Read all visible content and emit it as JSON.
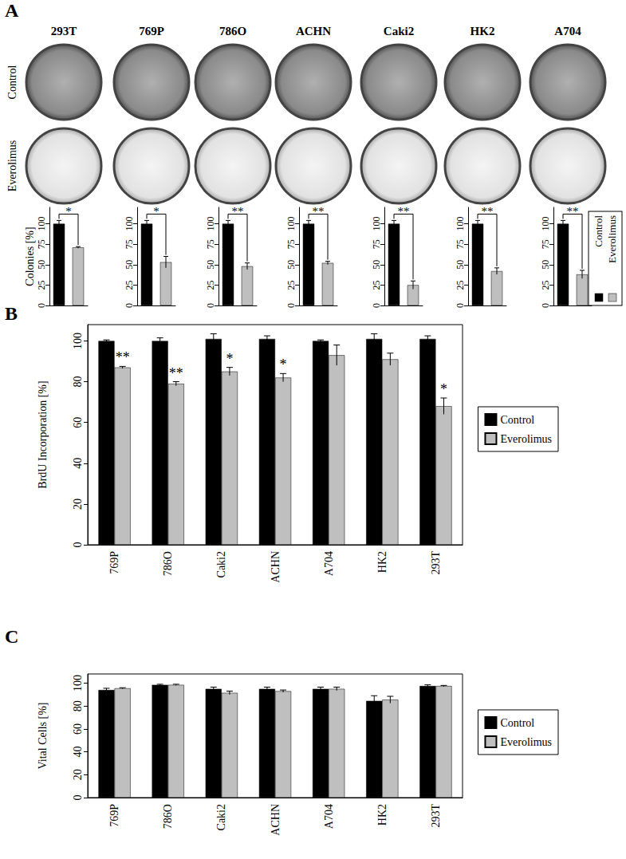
{
  "panel_labels": [
    "A",
    "B",
    "C"
  ],
  "panel_a": {
    "rows": [
      "Control",
      "Everolimus"
    ]
  },
  "chart_data": [
    {
      "type": "bar",
      "title": "293T",
      "categories": [
        null,
        null
      ],
      "ylabel": "Colonies [%]",
      "ylim": [
        0,
        120
      ],
      "yticks": [
        0,
        25,
        50,
        75,
        100
      ],
      "tick_labels": "y",
      "annotation": "*",
      "series": [
        {
          "name": "Control",
          "color": "#000000",
          "values": [
            100,
            null
          ],
          "errors": [
            4,
            null
          ]
        },
        {
          "name": "Everolimus",
          "color": "#bfbfbf",
          "values": [
            null,
            71
          ],
          "errors": [
            null,
            1
          ]
        }
      ]
    },
    {
      "type": "bar",
      "title": "769P",
      "categories": [
        null,
        null
      ],
      "ylim": [
        0,
        120
      ],
      "yticks": [
        0,
        25,
        50,
        75,
        100
      ],
      "tick_labels": "y",
      "annotation": "*",
      "series": [
        {
          "name": "Control",
          "color": "#000000",
          "values": [
            100,
            null
          ],
          "errors": [
            4,
            null
          ]
        },
        {
          "name": "Everolimus",
          "color": "#bfbfbf",
          "values": [
            null,
            53
          ],
          "errors": [
            null,
            7
          ]
        }
      ]
    },
    {
      "type": "bar",
      "title": "786O",
      "categories": [
        null,
        null
      ],
      "ylim": [
        0,
        120
      ],
      "yticks": [
        0,
        25,
        50,
        75,
        100
      ],
      "tick_labels": "y",
      "annotation": "**",
      "series": [
        {
          "name": "Control",
          "color": "#000000",
          "values": [
            100,
            null
          ],
          "errors": [
            4,
            null
          ]
        },
        {
          "name": "Everolimus",
          "color": "#bfbfbf",
          "values": [
            null,
            48
          ],
          "errors": [
            null,
            4
          ]
        }
      ]
    },
    {
      "type": "bar",
      "title": "ACHN",
      "categories": [
        null,
        null
      ],
      "ylim": [
        0,
        120
      ],
      "yticks": [
        0,
        25,
        50,
        75,
        100
      ],
      "tick_labels": "y",
      "annotation": "**",
      "series": [
        {
          "name": "Control",
          "color": "#000000",
          "values": [
            100,
            null
          ],
          "errors": [
            4,
            null
          ]
        },
        {
          "name": "Everolimus",
          "color": "#bfbfbf",
          "values": [
            null,
            52
          ],
          "errors": [
            null,
            2
          ]
        }
      ]
    },
    {
      "type": "bar",
      "title": "Caki2",
      "categories": [
        null,
        null
      ],
      "ylim": [
        0,
        120
      ],
      "yticks": [
        0,
        25,
        50,
        75,
        100
      ],
      "tick_labels": "y",
      "annotation": "**",
      "series": [
        {
          "name": "Control",
          "color": "#000000",
          "values": [
            100,
            null
          ],
          "errors": [
            4,
            null
          ]
        },
        {
          "name": "Everolimus",
          "color": "#bfbfbf",
          "values": [
            null,
            25
          ],
          "errors": [
            null,
            5
          ]
        }
      ]
    },
    {
      "type": "bar",
      "title": "HK2",
      "categories": [
        null,
        null
      ],
      "ylim": [
        0,
        120
      ],
      "yticks": [
        0,
        25,
        50,
        75,
        100
      ],
      "tick_labels": "y",
      "annotation": "**",
      "series": [
        {
          "name": "Control",
          "color": "#000000",
          "values": [
            100,
            null
          ],
          "errors": [
            4,
            null
          ]
        },
        {
          "name": "Everolimus",
          "color": "#bfbfbf",
          "values": [
            null,
            42
          ],
          "errors": [
            null,
            4
          ]
        }
      ]
    },
    {
      "type": "bar",
      "title": "A704",
      "categories": [
        null,
        null
      ],
      "ylim": [
        0,
        120
      ],
      "yticks": [
        0,
        25,
        50,
        75,
        100
      ],
      "tick_labels": "y",
      "annotation": "**",
      "legend": "right",
      "series": [
        {
          "name": "Control",
          "color": "#000000",
          "values": [
            100,
            null
          ],
          "errors": [
            4,
            null
          ]
        },
        {
          "name": "Everolimus",
          "color": "#bfbfbf",
          "values": [
            null,
            38
          ],
          "errors": [
            null,
            5
          ]
        }
      ]
    },
    {
      "type": "bar",
      "categories": [
        "769P",
        "786O",
        "Caki2",
        "ACHN",
        "A704",
        "HK2",
        "293T"
      ],
      "ylabel": "BrdU Incorporation [%]",
      "ylim": [
        0,
        108
      ],
      "yticks": [
        0,
        20,
        40,
        60,
        80,
        100
      ],
      "legend": "right",
      "annotations": [
        "**",
        "**",
        "*",
        "*",
        null,
        null,
        "*"
      ],
      "series": [
        {
          "name": "Control",
          "color": "#000000",
          "values": [
            100,
            100,
            101,
            101,
            100,
            101,
            101
          ],
          "errors": [
            0.5,
            1.5,
            2.5,
            1.5,
            0.5,
            2.5,
            1.5
          ]
        },
        {
          "name": "Everolimus",
          "color": "#bfbfbf",
          "values": [
            87,
            79,
            85,
            82,
            93,
            91,
            68
          ],
          "errors": [
            0.5,
            1,
            2,
            2,
            5,
            3,
            4
          ]
        }
      ]
    },
    {
      "type": "bar",
      "categories": [
        "769P",
        "786O",
        "Caki2",
        "ACHN",
        "A704",
        "HK2",
        "293T"
      ],
      "ylabel": "Vital Cells [%]",
      "ylim": [
        0,
        108
      ],
      "yticks": [
        0,
        20,
        40,
        60,
        80,
        100
      ],
      "legend": "right",
      "series": [
        {
          "name": "Control",
          "color": "#000000",
          "values": [
            94,
            98.5,
            95,
            95,
            95,
            84.5,
            97.5
          ],
          "errors": [
            1.5,
            0.5,
            1.5,
            1.5,
            1.5,
            4.5,
            1
          ]
        },
        {
          "name": "Everolimus",
          "color": "#bfbfbf",
          "values": [
            95.5,
            98.5,
            91.5,
            93,
            95,
            85.5,
            97.5
          ],
          "errors": [
            0.5,
            0.5,
            1.5,
            1,
            1.5,
            3,
            0.5
          ]
        }
      ]
    }
  ]
}
